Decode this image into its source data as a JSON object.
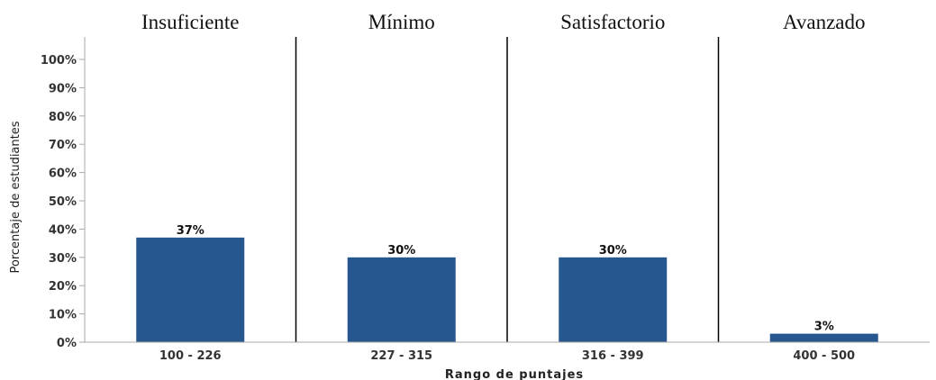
{
  "chart_data": {
    "type": "bar",
    "categories": [
      "100 - 226",
      "227 - 315",
      "316 - 399",
      "400 - 500"
    ],
    "values": [
      37,
      30,
      30,
      3
    ],
    "value_labels": [
      "37%",
      "30%",
      "30%",
      "3%"
    ],
    "level_labels": [
      "Insuficiente",
      "Mínimo",
      "Satisfactorio",
      "Avanzado"
    ],
    "xlabel": "Rango de puntajes",
    "ylabel": "Porcentaje de estudiantes",
    "ylim": [
      0,
      100
    ],
    "yticks": [
      0,
      10,
      20,
      30,
      40,
      50,
      60,
      70,
      80,
      90,
      100
    ],
    "ytick_labels": [
      "0%",
      "10%",
      "20%",
      "30%",
      "40%",
      "50%",
      "60%",
      "70%",
      "80%",
      "90%",
      "100%"
    ],
    "grid": false,
    "bar_color": "#27578f",
    "axis_color": "#aaaaaa",
    "divider_color": "#000000"
  }
}
